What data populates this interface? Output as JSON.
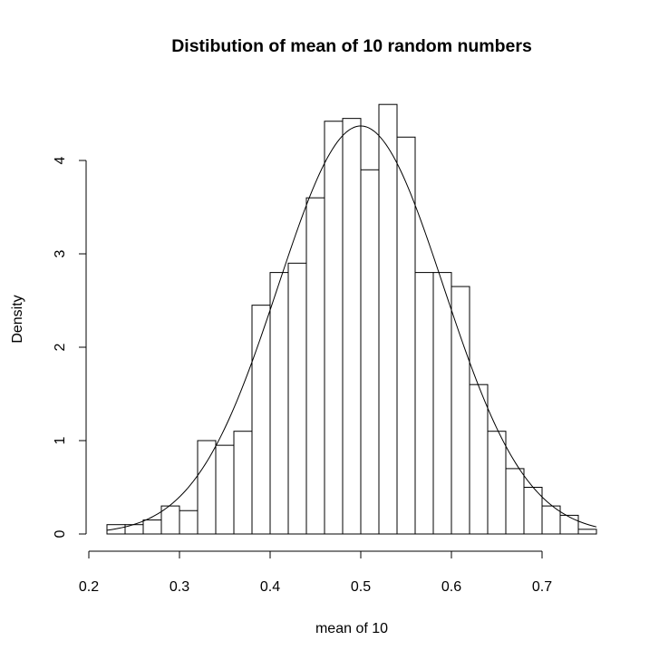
{
  "chart_data": {
    "type": "bar",
    "subtype": "histogram",
    "title": "Distibution of mean of 10 random numbers",
    "xlabel": "mean of 10",
    "ylabel": "Density",
    "xlim": [
      0.2,
      0.76
    ],
    "ylim": [
      0,
      4.6
    ],
    "x_ticks": [
      0.2,
      0.3,
      0.4,
      0.5,
      0.6,
      0.7
    ],
    "x_tick_labels": [
      "0.2",
      "0.3",
      "0.4",
      "0.5",
      "0.6",
      "0.7"
    ],
    "y_ticks": [
      0,
      1,
      2,
      3,
      4
    ],
    "y_tick_labels": [
      "0",
      "1",
      "2",
      "3",
      "4"
    ],
    "bin_width": 0.02,
    "bins": [
      {
        "start": 0.22,
        "density": 0.1
      },
      {
        "start": 0.24,
        "density": 0.1
      },
      {
        "start": 0.26,
        "density": 0.15
      },
      {
        "start": 0.28,
        "density": 0.3
      },
      {
        "start": 0.3,
        "density": 0.25
      },
      {
        "start": 0.32,
        "density": 1.0
      },
      {
        "start": 0.34,
        "density": 0.95
      },
      {
        "start": 0.36,
        "density": 1.1
      },
      {
        "start": 0.38,
        "density": 2.45
      },
      {
        "start": 0.4,
        "density": 2.8
      },
      {
        "start": 0.42,
        "density": 2.9
      },
      {
        "start": 0.44,
        "density": 3.6
      },
      {
        "start": 0.46,
        "density": 4.42
      },
      {
        "start": 0.48,
        "density": 4.45
      },
      {
        "start": 0.5,
        "density": 3.9
      },
      {
        "start": 0.52,
        "density": 4.6
      },
      {
        "start": 0.54,
        "density": 4.25
      },
      {
        "start": 0.56,
        "density": 2.8
      },
      {
        "start": 0.58,
        "density": 2.8
      },
      {
        "start": 0.6,
        "density": 2.65
      },
      {
        "start": 0.62,
        "density": 1.6
      },
      {
        "start": 0.64,
        "density": 1.1
      },
      {
        "start": 0.66,
        "density": 0.7
      },
      {
        "start": 0.68,
        "density": 0.5
      },
      {
        "start": 0.7,
        "density": 0.3
      },
      {
        "start": 0.72,
        "density": 0.2
      },
      {
        "start": 0.74,
        "density": 0.05
      }
    ],
    "density_curve": {
      "type": "normal",
      "mean": 0.5,
      "sd": 0.0913,
      "x_range": [
        0.22,
        0.76
      ]
    },
    "grid": false,
    "legend": "none"
  }
}
